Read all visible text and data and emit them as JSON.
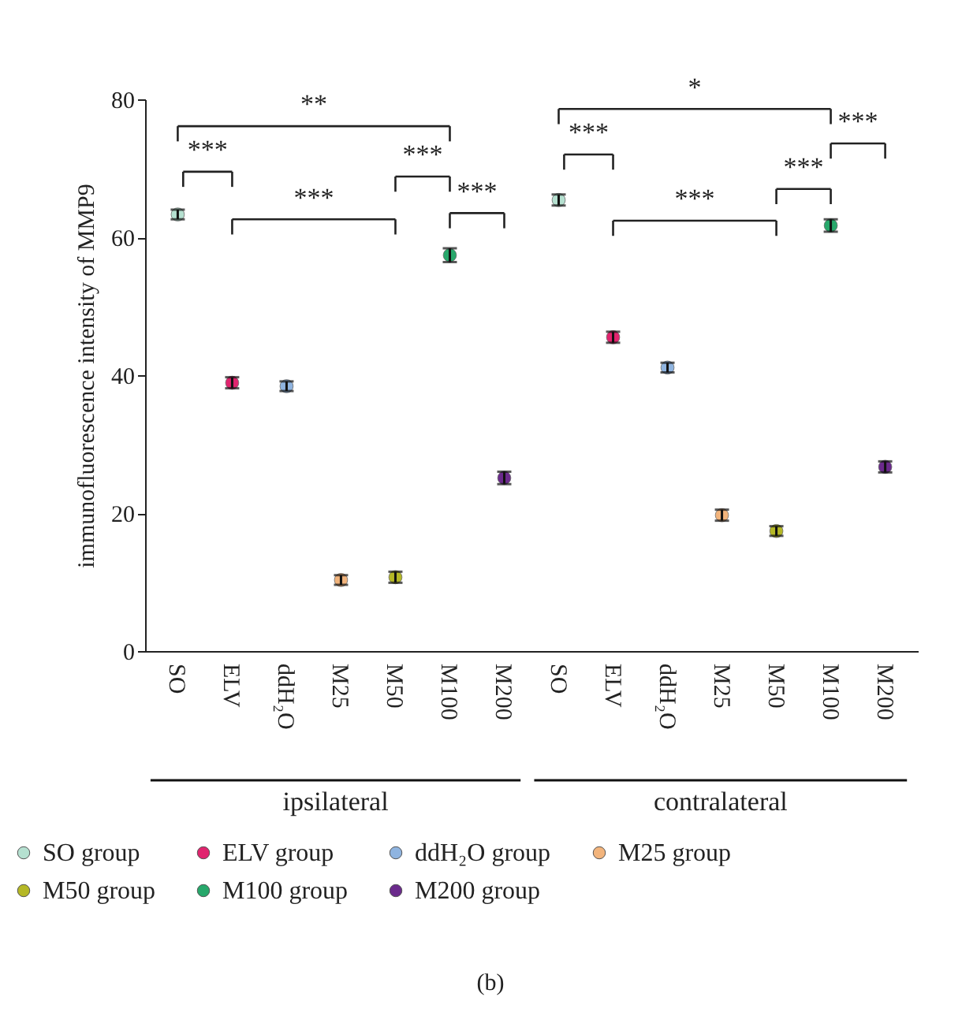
{
  "chart_data": {
    "type": "scatter",
    "ylabel": "immunofluorescence intensity of MMP9",
    "categories": [
      "SO",
      "ELV",
      "ddH₂O",
      "M25",
      "M50",
      "M100",
      "M200",
      "SO",
      "ELV",
      "ddH₂O",
      "M25",
      "M50",
      "M100",
      "M200"
    ],
    "series": [
      {
        "name": "SO group",
        "color": "#b5e0d0",
        "values": [
          63.3,
          null,
          null,
          null,
          null,
          null,
          null,
          65.4,
          null,
          null,
          null,
          null,
          null,
          null
        ],
        "errors": [
          0.7,
          null,
          null,
          null,
          null,
          null,
          null,
          0.8,
          null,
          null,
          null,
          null,
          null,
          null
        ]
      },
      {
        "name": "ELV group",
        "color": "#e0246e",
        "values": [
          null,
          38.9,
          null,
          null,
          null,
          null,
          null,
          null,
          45.5,
          null,
          null,
          null,
          null,
          null
        ],
        "errors": [
          null,
          0.8,
          null,
          null,
          null,
          null,
          null,
          null,
          0.8,
          null,
          null,
          null,
          null,
          null
        ]
      },
      {
        "name": "ddH₂O group",
        "color": "#8fb4e0",
        "values": [
          null,
          null,
          38.4,
          null,
          null,
          null,
          null,
          null,
          null,
          41.1,
          null,
          null,
          null,
          null
        ],
        "errors": [
          null,
          null,
          0.7,
          null,
          null,
          null,
          null,
          null,
          null,
          0.7,
          null,
          null,
          null,
          null
        ]
      },
      {
        "name": "M25 group",
        "color": "#f2b47c",
        "values": [
          null,
          null,
          null,
          10.3,
          null,
          null,
          null,
          null,
          null,
          null,
          19.7,
          null,
          null,
          null
        ],
        "errors": [
          null,
          null,
          null,
          0.7,
          null,
          null,
          null,
          null,
          null,
          null,
          0.8,
          null,
          null,
          null
        ]
      },
      {
        "name": "M50 group",
        "color": "#b5b826",
        "values": [
          null,
          null,
          null,
          null,
          10.7,
          null,
          null,
          null,
          null,
          null,
          null,
          17.4,
          null,
          null
        ],
        "errors": [
          null,
          null,
          null,
          null,
          0.8,
          null,
          null,
          null,
          null,
          null,
          null,
          0.7,
          null,
          null
        ]
      },
      {
        "name": "M100 group",
        "color": "#27a86b",
        "values": [
          null,
          null,
          null,
          null,
          null,
          57.4,
          null,
          null,
          null,
          null,
          null,
          null,
          61.7,
          null
        ],
        "errors": [
          null,
          null,
          null,
          null,
          null,
          1.0,
          null,
          null,
          null,
          null,
          null,
          null,
          0.9,
          null
        ]
      },
      {
        "name": "M200 group",
        "color": "#6b2a8c",
        "values": [
          null,
          null,
          null,
          null,
          null,
          null,
          25.1,
          null,
          null,
          null,
          null,
          null,
          null,
          26.7
        ],
        "errors": [
          null,
          null,
          null,
          null,
          null,
          null,
          0.9,
          null,
          null,
          null,
          null,
          null,
          null,
          0.8
        ]
      }
    ],
    "ylim": [
      0,
      80
    ],
    "yticks": [
      0,
      20,
      40,
      60,
      80
    ],
    "grid": false,
    "marker": "circle",
    "legend": "bottom",
    "annotations": [
      "**",
      "***",
      "***",
      "***",
      "***",
      "*",
      "***",
      "***",
      "***",
      "***",
      "ipsilateral",
      "contralateral",
      "(b)"
    ]
  }
}
